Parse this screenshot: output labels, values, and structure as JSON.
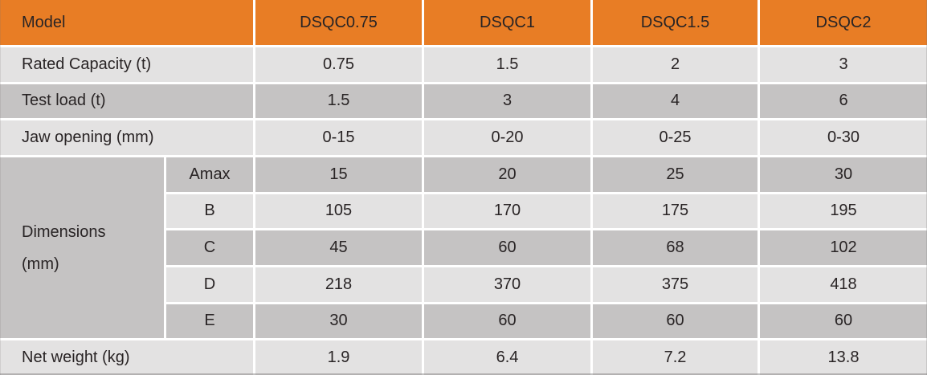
{
  "colors": {
    "header_bg": "#e87d25",
    "row_light_bg": "#e3e2e2",
    "row_dark_bg": "#c5c3c3",
    "grid_line": "#ffffff",
    "text": "#292425"
  },
  "table": {
    "header": {
      "model_label": "Model",
      "models": [
        "DSQC0.75",
        "DSQC1",
        "DSQC1.5",
        "DSQC2"
      ]
    },
    "rows": [
      {
        "label": "Rated Capacity (t)",
        "values": [
          "0.75",
          "1.5",
          "2",
          "3"
        ]
      },
      {
        "label": "Test load (t)",
        "values": [
          "1.5",
          "3",
          "4",
          "6"
        ]
      },
      {
        "label": "Jaw opening (mm)",
        "values": [
          "0-15",
          "0-20",
          "0-25",
          "0-30"
        ]
      }
    ],
    "dimensions_group": {
      "label_line1": "Dimensions",
      "label_line2": "(mm)",
      "sub_rows": [
        {
          "label": "Amax",
          "values": [
            "15",
            "20",
            "25",
            "30"
          ]
        },
        {
          "label": "B",
          "values": [
            "105",
            "170",
            "175",
            "195"
          ]
        },
        {
          "label": "C",
          "values": [
            "45",
            "60",
            "68",
            "102"
          ]
        },
        {
          "label": "D",
          "values": [
            "218",
            "370",
            "375",
            "418"
          ]
        },
        {
          "label": "E",
          "values": [
            "30",
            "60",
            "60",
            "60"
          ]
        }
      ]
    },
    "net_weight_row": {
      "label": "Net weight (kg)",
      "values": [
        "1.9",
        "6.4",
        "7.2",
        "13.8"
      ]
    }
  }
}
